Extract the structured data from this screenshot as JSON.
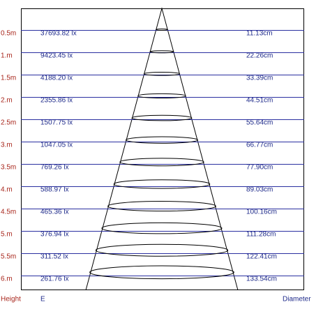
{
  "rows": [
    {
      "height": "0.5m",
      "e": "37693.82 lx",
      "diameter": "11.13cm"
    },
    {
      "height": "1.m",
      "e": "9423.45 lx",
      "diameter": "22.26cm"
    },
    {
      "height": "1.5m",
      "e": "4188.20 lx",
      "diameter": "33.39cm"
    },
    {
      "height": "2.m",
      "e": "2355.86 lx",
      "diameter": "44.51cm"
    },
    {
      "height": "2.5m",
      "e": "1507.75 lx",
      "diameter": "55.64cm"
    },
    {
      "height": "3.m",
      "e": "1047.05 lx",
      "diameter": "66.77cm"
    },
    {
      "height": "3.5m",
      "e": "769.26 lx",
      "diameter": "77.90cm"
    },
    {
      "height": "4.m",
      "e": "588.97 lx",
      "diameter": "89.03cm"
    },
    {
      "height": "4.5m",
      "e": "465.36 lx",
      "diameter": "100.16cm"
    },
    {
      "height": "5.m",
      "e": "376.94 lx",
      "diameter": "111.28cm"
    },
    {
      "height": "5.5m",
      "e": "311.52 lx",
      "diameter": "122.41cm"
    },
    {
      "height": "6.m",
      "e": "261.76 lx",
      "diameter": "133.54cm"
    }
  ],
  "footer": {
    "height": "Height",
    "e": "E",
    "diameter": "Diameter"
  }
}
